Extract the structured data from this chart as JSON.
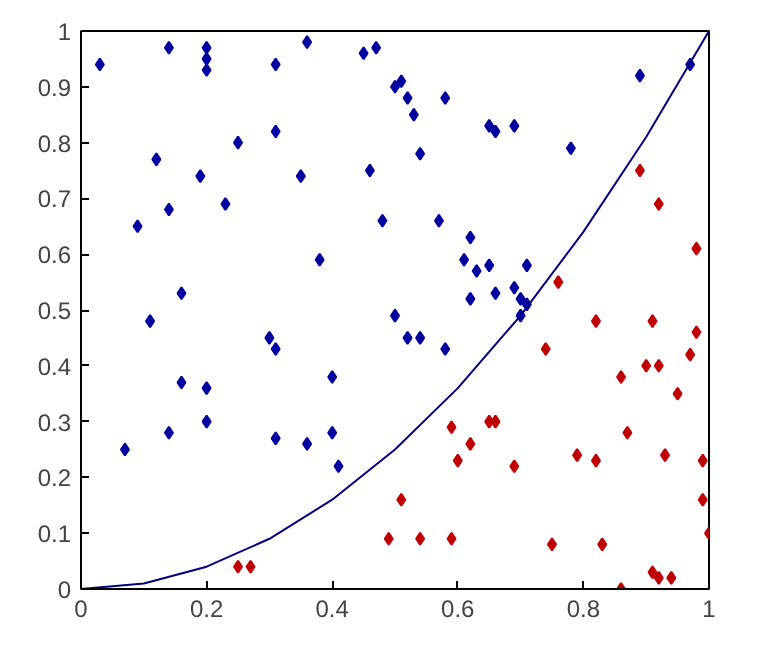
{
  "chart_data": {
    "type": "scatter",
    "marker": "diamond",
    "grid": false,
    "xlim": [
      0,
      1
    ],
    "ylim": [
      0,
      1
    ],
    "xticks": [
      0,
      0.2,
      0.4,
      0.6,
      0.8,
      1
    ],
    "yticks": [
      0,
      0.1,
      0.2,
      0.3,
      0.4,
      0.5,
      0.6,
      0.7,
      0.8,
      0.9,
      1
    ],
    "series": [
      {
        "color": "#0000a0",
        "x": [
          0.03,
          0.14,
          0.2,
          0.2,
          0.2,
          0.31,
          0.36,
          0.45,
          0.47,
          0.5,
          0.09,
          0.12,
          0.14,
          0.19,
          0.25,
          0.31,
          0.23,
          0.35,
          0.46,
          0.38,
          0.07,
          0.11,
          0.16,
          0.16,
          0.2,
          0.2,
          0.14,
          0.3,
          0.31,
          0.31,
          0.36,
          0.4,
          0.4,
          0.41,
          0.5,
          0.51,
          0.52,
          0.53,
          0.58,
          0.54,
          0.65,
          0.66,
          0.69,
          0.78,
          0.89,
          0.97,
          0.48,
          0.57,
          0.62,
          0.61,
          0.63,
          0.65,
          0.71,
          0.62,
          0.66,
          0.69,
          0.7,
          0.71,
          0.52,
          0.54,
          0.58,
          0.7
        ],
        "values": [
          0.94,
          0.97,
          0.97,
          0.95,
          0.93,
          0.94,
          0.98,
          0.96,
          0.97,
          0.9,
          0.65,
          0.77,
          0.68,
          0.74,
          0.8,
          0.82,
          0.69,
          0.74,
          0.75,
          0.59,
          0.25,
          0.48,
          0.53,
          0.37,
          0.36,
          0.3,
          0.28,
          0.45,
          0.43,
          0.27,
          0.26,
          0.38,
          0.28,
          0.22,
          0.49,
          0.91,
          0.88,
          0.85,
          0.88,
          0.78,
          0.83,
          0.82,
          0.83,
          0.79,
          0.92,
          0.94,
          0.66,
          0.66,
          0.63,
          0.59,
          0.57,
          0.58,
          0.58,
          0.52,
          0.53,
          0.54,
          0.52,
          0.51,
          0.45,
          0.45,
          0.43,
          0.49
        ]
      },
      {
        "color": "#c00000",
        "x": [
          0.25,
          0.27,
          0.49,
          0.76,
          0.89,
          0.92,
          0.98,
          0.74,
          0.82,
          0.91,
          0.98,
          0.97,
          0.9,
          0.92,
          0.86,
          0.95,
          0.59,
          0.65,
          0.66,
          0.62,
          0.87,
          0.6,
          0.79,
          0.82,
          0.93,
          0.99,
          0.69,
          0.51,
          0.99,
          1.0,
          0.54,
          0.59,
          0.75,
          0.83,
          0.91,
          0.92,
          0.94,
          0.86
        ],
        "values": [
          0.04,
          0.04,
          0.09,
          0.55,
          0.75,
          0.69,
          0.61,
          0.43,
          0.48,
          0.48,
          0.46,
          0.42,
          0.4,
          0.4,
          0.38,
          0.35,
          0.29,
          0.3,
          0.3,
          0.26,
          0.28,
          0.23,
          0.24,
          0.23,
          0.24,
          0.23,
          0.22,
          0.16,
          0.16,
          0.1,
          0.09,
          0.09,
          0.08,
          0.08,
          0.03,
          0.02,
          0.02,
          0.0
        ]
      },
      {
        "type": "line",
        "color": "#00007f",
        "marker": "none",
        "x": [
          0,
          0.1,
          0.2,
          0.3,
          0.4,
          0.5,
          0.6,
          0.7,
          0.8,
          0.9,
          1
        ],
        "values": [
          0,
          0.01,
          0.04,
          0.09,
          0.16,
          0.25,
          0.36,
          0.49,
          0.64,
          0.81,
          1
        ]
      }
    ]
  }
}
